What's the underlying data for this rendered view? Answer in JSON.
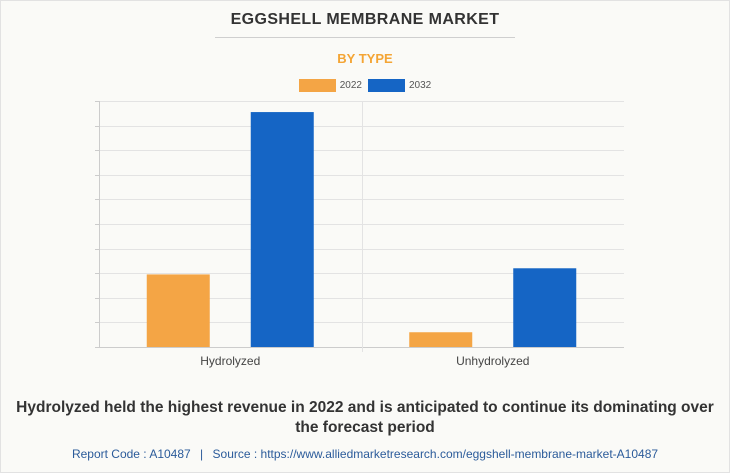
{
  "header": {
    "title": "EGGSHELL MEMBRANE MARKET",
    "subtitle": "BY TYPE"
  },
  "colors": {
    "series_2022": "#f4a545",
    "series_2032": "#1565c5",
    "subtitle": "#f4a535",
    "grid": "#e3e3e3",
    "axis": "#cccccc",
    "footer": "#2b5b9a"
  },
  "chart_data": {
    "type": "bar",
    "categories": [
      "Hydrolyzed",
      "Unhydrolyzed"
    ],
    "series": [
      {
        "name": "2022",
        "values": [
          29.5,
          6
        ]
      },
      {
        "name": "2032",
        "values": [
          95.5,
          32
        ]
      }
    ],
    "ylim": [
      0,
      100
    ],
    "grid": true,
    "y_ticks_visible": false,
    "legend_position": "top-center"
  },
  "caption": "Hydrolyzed held the highest revenue in 2022 and is anticipated to continue its dominating over the forecast period",
  "footer": {
    "report_code_label": "Report Code : A10487",
    "separator": "|",
    "source_label": "Source : https://www.alliedmarketresearch.com/eggshell-membrane-market-A10487"
  }
}
